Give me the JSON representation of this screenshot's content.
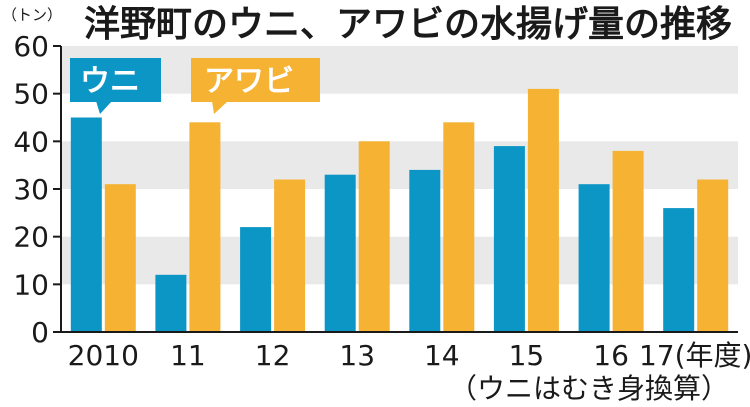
{
  "chart_data": {
    "type": "bar",
    "title": "洋野町のウニ、アワビの水揚げ量の推移",
    "ylabel_unit": "（トン）",
    "categories": [
      "2010",
      "11",
      "12",
      "13",
      "14",
      "15",
      "16",
      "17(年度)"
    ],
    "x_note": "（ウニはむき身換算）",
    "ylim": [
      0,
      60
    ],
    "yticks": [
      0,
      10,
      20,
      30,
      40,
      50,
      60
    ],
    "grid": "alternating horizontal bands",
    "legend_placement": "top-left callouts",
    "series": [
      {
        "name": "ウニ",
        "color": "#0b96c5",
        "values": [
          45,
          12,
          22,
          33,
          34,
          39,
          31,
          26
        ]
      },
      {
        "name": "アワビ",
        "color": "#f6b233",
        "values": [
          31,
          44,
          32,
          40,
          44,
          51,
          38,
          32
        ]
      }
    ]
  },
  "colors": {
    "band": "#e9e9e9",
    "axis": "#1a1a1a"
  }
}
